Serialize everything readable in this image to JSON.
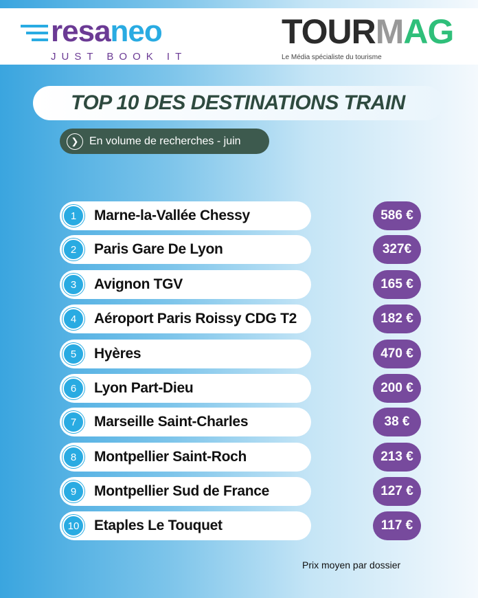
{
  "logos": {
    "resaneo": {
      "part1": "resa",
      "part2": "neo",
      "tagline": "JUST BOOK IT"
    },
    "tourmag": {
      "part1": "TOUR",
      "part2": "M",
      "part3": "AG",
      "tagline": "Le Média spécialiste du tourisme"
    }
  },
  "title": "TOP 10 DES DESTINATIONS TRAIN",
  "subtitle": {
    "icon": "chevron-right-circle-icon",
    "label": "En volume de recherches - juin"
  },
  "colors": {
    "rank_badge": "#29abe2",
    "price_badge": "#774a9d",
    "subtitle_bg": "#3d5a4e",
    "title_text": "#2e4a3f"
  },
  "ranking": [
    {
      "rank": "1",
      "destination": "Marne-la-Vallée Chessy",
      "price": "586 €"
    },
    {
      "rank": "2",
      "destination": "Paris Gare De Lyon",
      "price": "327€"
    },
    {
      "rank": "3",
      "destination": "Avignon TGV",
      "price": "165 €"
    },
    {
      "rank": "4",
      "destination": "Aéroport Paris Roissy CDG T2",
      "price": "182 €"
    },
    {
      "rank": "5",
      "destination": "Hyères",
      "price": "470 €"
    },
    {
      "rank": "6",
      "destination": "Lyon Part-Dieu",
      "price": "200 €"
    },
    {
      "rank": "7",
      "destination": "Marseille Saint-Charles",
      "price": "38 €"
    },
    {
      "rank": "8",
      "destination": "Montpellier Saint-Roch",
      "price": "213 €"
    },
    {
      "rank": "9",
      "destination": "Montpellier Sud de France",
      "price": "127 €"
    },
    {
      "rank": "10",
      "destination": "Etaples Le Touquet",
      "price": "117 €"
    }
  ],
  "footnote": "Prix moyen par dossier"
}
